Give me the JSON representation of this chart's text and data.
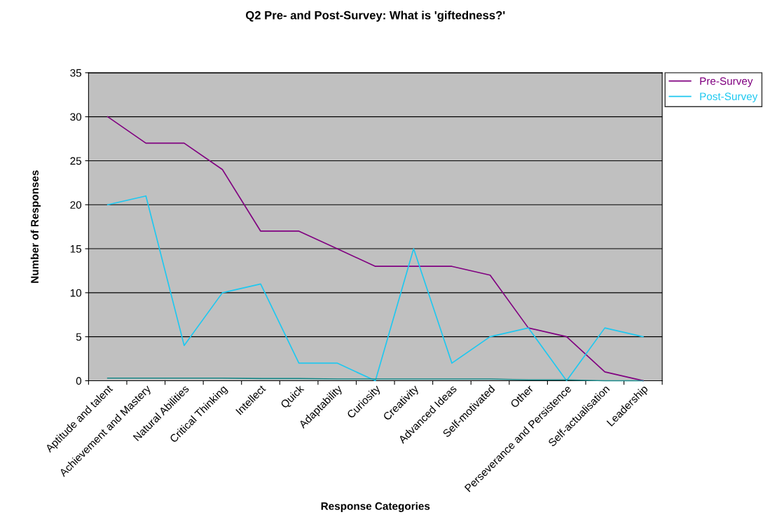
{
  "chart_data": {
    "type": "line",
    "title": "Q2 Pre- and Post-Survey: What is 'giftedness?'",
    "xlabel": "Response Categories",
    "ylabel": "Number of Responses",
    "categories": [
      "Aptitude and talent",
      "Achievement and Mastery",
      "Natural Abilities",
      "Critical Thinking",
      "Intellect",
      "Quick",
      "Adaptability",
      "Curiosity",
      "Creativity",
      "Advanced Ideas",
      "Self-motivated",
      "Other",
      "Perseverance and Persistence",
      "Self-actualisation",
      "Leadership"
    ],
    "series": [
      {
        "name": "Pre-Survey",
        "color": "#800080",
        "values": [
          30,
          27,
          27,
          24,
          17,
          17,
          15,
          13,
          13,
          13,
          12,
          6,
          5,
          1,
          0
        ]
      },
      {
        "name": "Post-Survey",
        "color": "#1ec8f0",
        "values": [
          20,
          21,
          4,
          10,
          11,
          2,
          2,
          0,
          15,
          2,
          5,
          6,
          0,
          6,
          5
        ]
      },
      {
        "color": "#1a8a8a",
        "values": [
          0.3,
          0.3,
          0.3,
          0.3,
          0.25,
          0.25,
          0.2,
          0.2,
          0.2,
          0.2,
          0.2,
          0.1,
          0.1,
          0,
          0
        ]
      }
    ],
    "ylim": [
      0,
      35
    ],
    "yticks": [
      0,
      5,
      10,
      15,
      20,
      25,
      30,
      35
    ],
    "grid": "y",
    "legend": "right",
    "marker": "none"
  }
}
